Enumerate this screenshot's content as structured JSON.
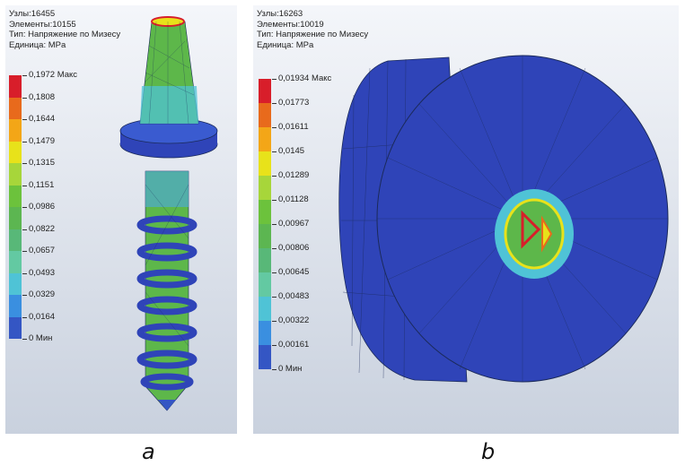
{
  "panels": [
    {
      "label": "a",
      "info": [
        "Узлы:16455",
        "Элементы:10155",
        "Тип: Напряжение по Мизесу",
        "Единица: MPa"
      ],
      "legend": [
        "0,1972 Макс",
        "0,1808",
        "0,1644",
        "0,1479",
        "0,1315",
        "0,1151",
        "0,0986",
        "0,0822",
        "0,0657",
        "0,0493",
        "0,0329",
        "0,0164",
        "0 Мин"
      ]
    },
    {
      "label": "b",
      "info": [
        "Узлы:16263",
        "Элементы:10019",
        "Тип: Напряжение по Мизесу",
        "Единица: MPa"
      ],
      "legend": [
        "0,01934 Макс",
        "0,01773",
        "0,01611",
        "0,0145",
        "0,01289",
        "0,01128",
        "0,00967",
        "0,00806",
        "0,00645",
        "0,00483",
        "0,00322",
        "0,00161",
        "0 Мин"
      ]
    }
  ],
  "colors": {
    "scale": [
      "#d81e2a",
      "#e86a1c",
      "#f3a617",
      "#e8e21a",
      "#a7d63a",
      "#6cc23c",
      "#5cb651",
      "#58b878",
      "#63c9a2",
      "#4fc3d6",
      "#3a8fe0",
      "#3456c4",
      "#2a3ca8"
    ],
    "model_blue": "#2f44b8",
    "model_green": "#5db74a"
  }
}
